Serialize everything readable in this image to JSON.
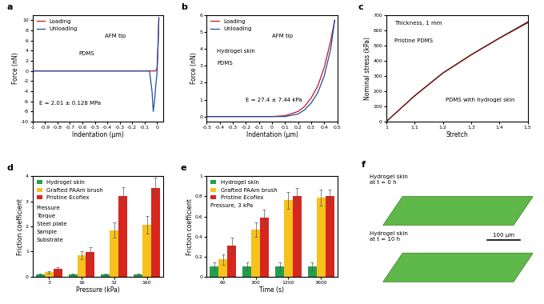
{
  "chart_data": [
    {
      "type": "line",
      "title": "a",
      "x_label": "Indentation (μm)",
      "y_label": "Force (nN)",
      "xlim": [
        -1,
        0.05
      ],
      "xticks": [
        -1,
        -0.9,
        -0.8,
        -0.7,
        -0.6,
        -0.5,
        -0.4,
        -0.3,
        -0.2,
        -0.1,
        0
      ],
      "ylim": [
        -10,
        11
      ],
      "yticks": [
        -10,
        -8,
        -6,
        -4,
        -2,
        0,
        2,
        4,
        6,
        8,
        10
      ],
      "legend": "upper left",
      "series": [
        {
          "name": "Loading",
          "color": "#c8102e",
          "x": [
            -1,
            -0.5,
            -0.1,
            -0.03,
            -0.01,
            0,
            0.005,
            0.01,
            0.015
          ],
          "values": [
            0,
            0,
            0,
            0,
            0,
            0.5,
            3,
            6.5,
            10.5
          ]
        },
        {
          "name": "Unloading",
          "color": "#1f4e9c",
          "x": [
            0.015,
            0.01,
            0.005,
            0,
            -0.01,
            -0.02,
            -0.03,
            -0.04,
            -0.06,
            -0.1,
            -1
          ],
          "values": [
            10.5,
            6,
            2.5,
            -0.5,
            -3,
            -6,
            -8,
            -4,
            0,
            0,
            0
          ]
        }
      ],
      "annotations": [
        "AFM tip",
        "PDMS",
        "E = 2.01 ± 0.128 MPa"
      ]
    },
    {
      "type": "line",
      "title": "b",
      "x_label": "Indentation (μm)",
      "y_label": "Force (nN)",
      "xlim": [
        -0.5,
        0.5
      ],
      "xticks": [
        -0.5,
        -0.4,
        -0.3,
        -0.2,
        -0.1,
        0,
        0.1,
        0.2,
        0.3,
        0.4,
        0.5
      ],
      "ylim": [
        -0.3,
        6
      ],
      "yticks": [
        0,
        1,
        2,
        3,
        4,
        5,
        6
      ],
      "legend": "upper left",
      "series": [
        {
          "name": "Loading",
          "color": "#c8102e",
          "x": [
            -0.5,
            0,
            0.1,
            0.2,
            0.25,
            0.3,
            0.35,
            0.4,
            0.45,
            0.48
          ],
          "values": [
            0,
            0,
            0.05,
            0.3,
            0.6,
            1.1,
            1.8,
            2.9,
            4.5,
            5.7
          ]
        },
        {
          "name": "Unloading",
          "color": "#1f4e9c",
          "x": [
            0.48,
            0.45,
            0.4,
            0.35,
            0.3,
            0.25,
            0.2,
            0.1,
            0,
            -0.5
          ],
          "values": [
            5.7,
            4.0,
            2.4,
            1.4,
            0.8,
            0.4,
            0.15,
            0,
            0,
            0
          ]
        }
      ],
      "annotations": [
        "AFM tip",
        "Hydrogel skin",
        "PDMS",
        "E = 27.4 ± 7.44 kPa"
      ]
    },
    {
      "type": "line",
      "title": "c",
      "x_label": "Stretch",
      "y_label": "Nominal stress (kPa)",
      "xlim": [
        1,
        1.5
      ],
      "xticks": [
        1,
        1.1,
        1.2,
        1.3,
        1.4,
        1.5
      ],
      "ylim": [
        0,
        700
      ],
      "yticks": [
        0,
        100,
        200,
        300,
        400,
        500,
        600,
        700
      ],
      "series": [
        {
          "color": "#111111",
          "x": [
            1,
            1.1,
            1.2,
            1.3,
            1.4,
            1.5
          ],
          "values": [
            0,
            170,
            320,
            440,
            550,
            655
          ]
        },
        {
          "color": "#8b1a1a",
          "x": [
            1,
            1.1,
            1.2,
            1.3,
            1.4,
            1.5
          ],
          "values": [
            0,
            168,
            318,
            438,
            548,
            650
          ]
        }
      ],
      "annotations": [
        "Thickness, 1 mm",
        "Pristine PDMS",
        "PDMS with hydrogel skin"
      ]
    },
    {
      "type": "bar",
      "title": "d",
      "x_label": "Pressure (kPa)",
      "y_label": "Friction coefficient",
      "categories": [
        "3",
        "16",
        "32",
        "160"
      ],
      "ylim": [
        0,
        4
      ],
      "yticks": [
        0,
        1,
        2,
        3,
        4
      ],
      "legend": "upper left",
      "series": [
        {
          "name": "Hydrogel skin",
          "color": "#22a04b",
          "values": [
            0.08,
            0.1,
            0.1,
            0.08
          ],
          "errors": [
            0.03,
            0.03,
            0.03,
            0.03
          ]
        },
        {
          "name": "Grafted PAAm brush",
          "color": "#f7c21b",
          "values": [
            0.17,
            0.85,
            1.85,
            2.08
          ],
          "errors": [
            0.05,
            0.15,
            0.3,
            0.35
          ]
        },
        {
          "name": "Pristine Ecoflex",
          "color": "#d7261e",
          "values": [
            0.3,
            0.97,
            3.22,
            3.55
          ],
          "errors": [
            0.07,
            0.2,
            0.35,
            0.4
          ]
        }
      ],
      "annotations": [
        "Pressure",
        "Torque",
        "Steel plate",
        "Sample",
        "Substrate"
      ]
    },
    {
      "type": "bar",
      "title": "e",
      "x_label": "Time (s)",
      "y_label": "Friction coefficient",
      "categories": [
        "60",
        "300",
        "1200",
        "3600"
      ],
      "ylim": [
        0,
        1
      ],
      "yticks": [
        0,
        0.2,
        0.4,
        0.6,
        0.8,
        1
      ],
      "legend": "upper left",
      "series": [
        {
          "name": "Hydrogel skin",
          "color": "#22a04b",
          "values": [
            0.1,
            0.1,
            0.1,
            0.1
          ],
          "errors": [
            0.04,
            0.04,
            0.04,
            0.04
          ]
        },
        {
          "name": "Grafted PAAm brush",
          "color": "#f7c21b",
          "values": [
            0.17,
            0.47,
            0.76,
            0.79
          ],
          "errors": [
            0.05,
            0.07,
            0.08,
            0.08
          ]
        },
        {
          "name": "Pristine Ecoflex",
          "color": "#d7261e",
          "values": [
            0.31,
            0.59,
            0.8,
            0.8
          ],
          "errors": [
            0.08,
            0.08,
            0.08,
            0.07
          ]
        }
      ],
      "annotations": [
        "Pressure, 3 kPa"
      ]
    },
    {
      "type": "image",
      "title": "f",
      "annotations": [
        "Hydrogel skin\nat t = 0 h",
        "Hydrogel skin\nat t = 10 h",
        "100 μm"
      ]
    }
  ]
}
